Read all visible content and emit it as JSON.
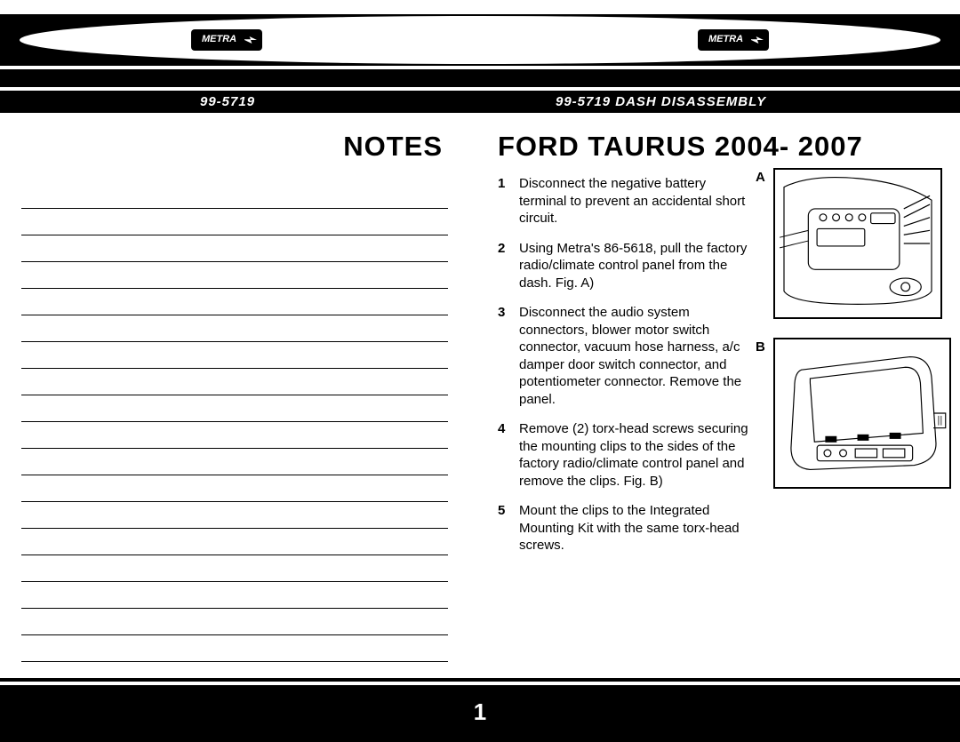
{
  "header": {
    "left_code": "99-5719",
    "right_code": "99-5719",
    "right_title": "DASH DISASSEMBLY",
    "brand": "METRA"
  },
  "left": {
    "title": "NOTES",
    "line_count": 18
  },
  "right": {
    "title": "FORD TAURUS 2004- 2007",
    "steps": [
      {
        "num": "1",
        "text": "Disconnect the negative battery terminal to prevent an accidental short circuit."
      },
      {
        "num": "2",
        "text": "Using Metra's 86-5618, pull the factory radio/climate control panel from the dash. Fig. A)"
      },
      {
        "num": "3",
        "text": "Disconnect the audio system connectors, blower motor switch connector, vacuum hose harness, a/c damper door switch connector, and potentiometer connector. Remove the panel."
      },
      {
        "num": "4",
        "text": "Remove (2) torx-head screws securing the mounting clips to the sides of the factory radio/climate control panel and remove the clips.  Fig. B)"
      },
      {
        "num": "5",
        "text": "Mount the clips to the Integrated Mounting Kit with the same torx-head screws."
      }
    ],
    "figures": {
      "a_label": "A",
      "b_label": "B"
    }
  },
  "page_number": "1",
  "colors": {
    "black": "#000000",
    "white": "#ffffff"
  },
  "typography": {
    "title_fontsize": 31,
    "header_fontsize": 15,
    "body_fontsize": 15,
    "stepnum_fontsize": 15,
    "pagenum_fontsize": 26
  }
}
